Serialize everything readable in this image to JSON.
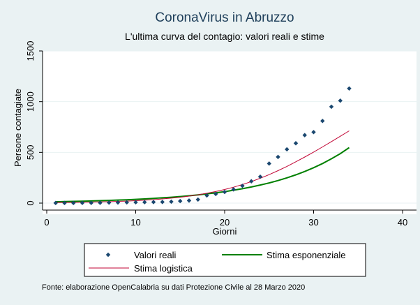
{
  "chart_data": {
    "type": "scatter",
    "title": "CoronaVirus in Abruzzo",
    "subtitle": "L'ultima curva del contagio: valori reali e stime",
    "xlabel": "Giorni",
    "ylabel": "Persone contagiate",
    "xlim": [
      0,
      40
    ],
    "ylim": [
      0,
      1500
    ],
    "xticks": [
      0,
      10,
      20,
      30,
      40
    ],
    "yticks": [
      0,
      500,
      1000,
      1500
    ],
    "grid": "horizontal",
    "legend_position": "bottom",
    "series": [
      {
        "name": "Valori reali",
        "kind": "markers",
        "color": "#1a476f",
        "x": [
          1,
          2,
          3,
          4,
          5,
          6,
          7,
          8,
          9,
          10,
          11,
          12,
          13,
          14,
          15,
          16,
          17,
          18,
          19,
          20,
          21,
          22,
          23,
          24,
          25,
          26,
          27,
          28,
          29,
          30,
          31,
          32,
          33,
          34
        ],
        "y": [
          1,
          1,
          1,
          2,
          2,
          3,
          5,
          6,
          7,
          8,
          9,
          10,
          11,
          14,
          20,
          25,
          35,
          75,
          90,
          110,
          135,
          170,
          215,
          260,
          390,
          455,
          530,
          590,
          670,
          700,
          810,
          950,
          1010,
          1130
        ]
      },
      {
        "name": "Stima esponenziale",
        "kind": "line",
        "color": "#008000",
        "x": [
          1,
          2,
          3,
          4,
          5,
          6,
          7,
          8,
          9,
          10,
          11,
          12,
          13,
          14,
          15,
          16,
          17,
          18,
          19,
          20,
          21,
          22,
          23,
          24,
          25,
          26,
          27,
          28,
          29,
          30,
          31,
          32,
          33,
          34
        ],
        "y": [
          13,
          15,
          17,
          19,
          21,
          24,
          27,
          30,
          33,
          37,
          41,
          46,
          52,
          58,
          65,
          72,
          81,
          91,
          101,
          113,
          127,
          142,
          159,
          178,
          199,
          222,
          249,
          279,
          312,
          349,
          390,
          437,
          488,
          547
        ]
      },
      {
        "name": "Stima logistica",
        "kind": "line",
        "color": "#c10534",
        "x": [
          1,
          2,
          3,
          4,
          5,
          6,
          7,
          8,
          9,
          10,
          11,
          12,
          13,
          14,
          15,
          16,
          17,
          18,
          19,
          20,
          21,
          22,
          23,
          24,
          25,
          26,
          27,
          28,
          29,
          30,
          31,
          32,
          33,
          34
        ],
        "y": [
          5,
          6,
          7,
          8,
          10,
          12,
          14,
          17,
          20,
          24,
          29,
          34,
          41,
          49,
          58,
          69,
          82,
          97,
          114,
          134,
          157,
          183,
          212,
          245,
          281,
          320,
          362,
          407,
          454,
          503,
          554,
          606,
          659,
          712
        ]
      }
    ]
  },
  "footnote": "Fonte: elaborazione OpenCalabria su dati Protezione Civile al 28 Marzo 2020"
}
